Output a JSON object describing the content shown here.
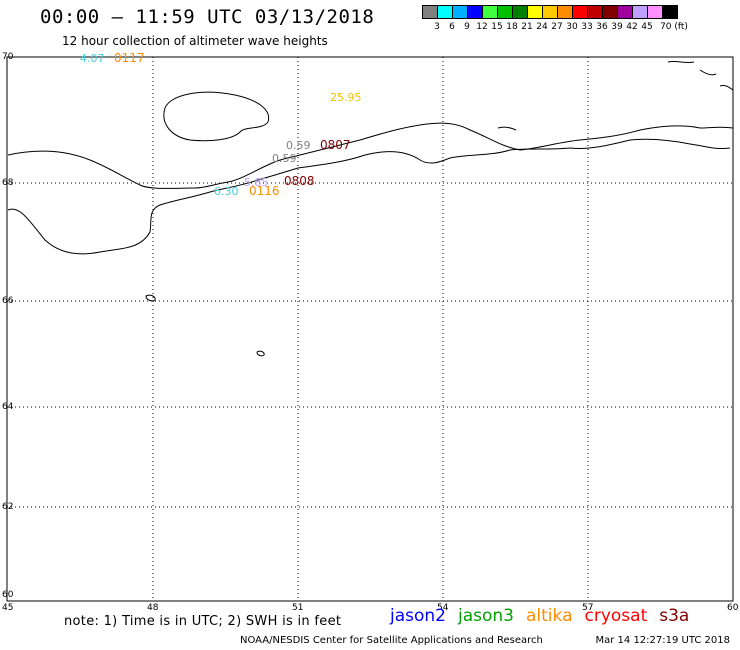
{
  "header": {
    "title": "00:00 – 11:59 UTC 03/13/2018",
    "subtitle": "12 hour collection of altimeter wave heights"
  },
  "scale": {
    "colors": [
      "#808080",
      "#00ffff",
      "#00b0ff",
      "#0000ff",
      "#40ff40",
      "#00c000",
      "#008000",
      "#ffff00",
      "#ffc800",
      "#ff8c00",
      "#ff0000",
      "#c00000",
      "#800000",
      "#a000a0",
      "#c0a0ff",
      "#ff90ff",
      "#000000"
    ],
    "ticks": [
      "3",
      "6",
      "9",
      "12",
      "15",
      "18",
      "21",
      "24",
      "27",
      "30",
      "33",
      "36",
      "39",
      "42",
      "45",
      "70 (ft)"
    ]
  },
  "axes": {
    "lat_labels": [
      "70",
      "68",
      "66",
      "64",
      "62",
      "60"
    ],
    "lon_labels": [
      "45",
      "48",
      "51",
      "54",
      "57",
      "60"
    ]
  },
  "observations": [
    {
      "text": "4.07",
      "color": "#40d0e0"
    },
    {
      "text": "0117",
      "color": "#ff8c00"
    },
    {
      "text": "25.95",
      "color": "#f0c000"
    },
    {
      "text": "0.59",
      "color": "#808080"
    },
    {
      "text": "0807",
      "color": "#800000"
    },
    {
      "text": "0.59",
      "color": "#808080"
    },
    {
      "text": "5.85",
      "color": "#c0a0ff"
    },
    {
      "text": "0808",
      "color": "#800000"
    },
    {
      "text": "6.30",
      "color": "#40d0e0"
    },
    {
      "text": "0116",
      "color": "#ff8c00"
    }
  ],
  "note": "note: 1) Time is in UTC; 2) SWH is in feet",
  "satellites": [
    {
      "name": "jason2",
      "color": "#0000ff"
    },
    {
      "name": "jason3",
      "color": "#00a000"
    },
    {
      "name": "altika",
      "color": "#ff8c00"
    },
    {
      "name": "cryosat",
      "color": "#ff0000"
    },
    {
      "name": "s3a",
      "color": "#800000"
    }
  ],
  "footer": {
    "credit": "NOAA/NESDIS Center for Satellite Applications and Research",
    "timestamp": "Mar 14 12:27:19 UTC 2018"
  }
}
